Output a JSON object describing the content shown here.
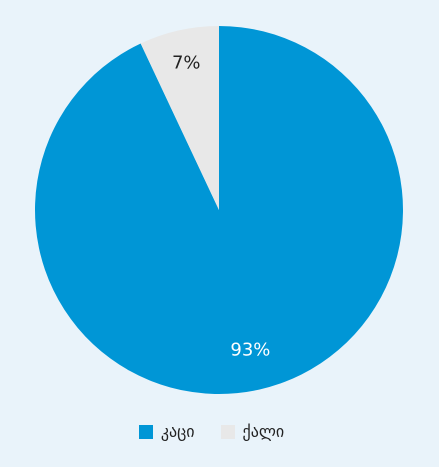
{
  "chart_data": {
    "type": "pie",
    "slices": [
      {
        "label": "კაცი",
        "value": 93,
        "display": "93%",
        "color": "#0096d6"
      },
      {
        "label": "ქალი",
        "value": 7,
        "display": "7%",
        "color": "#e8e8e8"
      }
    ],
    "legend": {
      "position": "bottom"
    }
  },
  "colors": {
    "background": "#e9f3fa",
    "label_on_blue": "#ffffff",
    "label_on_grey": "#222222"
  }
}
